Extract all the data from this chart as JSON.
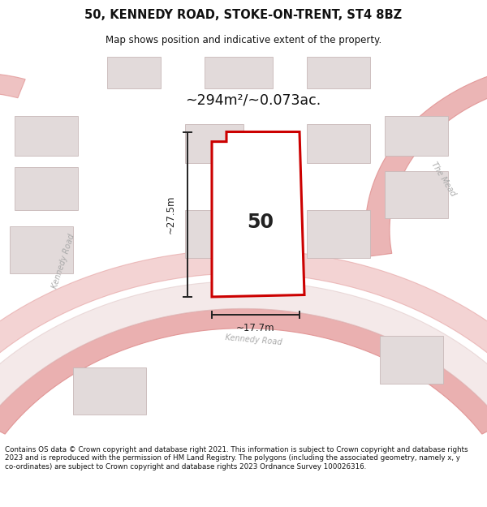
{
  "title": "50, KENNEDY ROAD, STOKE-ON-TRENT, ST4 8BZ",
  "subtitle": "Map shows position and indicative extent of the property.",
  "footer": "Contains OS data © Crown copyright and database right 2021. This information is subject to Crown copyright and database rights 2023 and is reproduced with the permission of HM Land Registry. The polygons (including the associated geometry, namely x, y co-ordinates) are subject to Crown copyright and database rights 2023 Ordnance Survey 100026316.",
  "area_label": "~294m²/~0.073ac.",
  "number_label": "50",
  "dim_height": "~27.5m",
  "dim_width": "~17.7m",
  "road_label_left": "Kennedy Road",
  "road_label_bottom": "Kennedy Road",
  "mead_label": "The Mead",
  "map_bg": "#f2eeee",
  "building_fill": "#e2dada",
  "building_edge": "#c8b8b8",
  "road_color": "#e8a8a8",
  "road_edge": "#e09090",
  "property_fill": "#ffffff",
  "property_edge": "#cc0000",
  "title_color": "#111111",
  "footer_color": "#111111",
  "label_color": "#aaaaaa",
  "dim_color": "#222222"
}
